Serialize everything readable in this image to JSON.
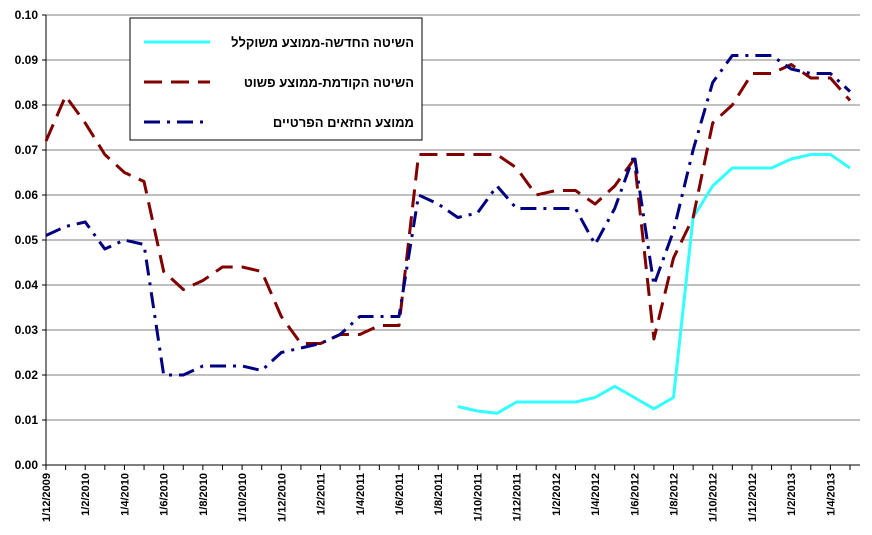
{
  "chart_data": {
    "type": "line",
    "categories": [
      "1/12/2009",
      null,
      "1/2/2010",
      null,
      "1/4/2010",
      null,
      "1/6/2010",
      null,
      "1/8/2010",
      null,
      "1/10/2010",
      null,
      "1/12/2010",
      null,
      "1/2/2011",
      null,
      "1/4/2011",
      null,
      "1/6/2011",
      null,
      "1/8/2011",
      null,
      "1/10/2011",
      null,
      "1/12/2011",
      null,
      "1/2/2012",
      null,
      "1/4/2012",
      null,
      "1/6/2012",
      null,
      "1/8/2012",
      null,
      "1/10/2012",
      null,
      "1/12/2012",
      null,
      "1/2/2013",
      null,
      "1/4/2013",
      null
    ],
    "series": [
      {
        "name": "השיטה החדשה-ממוצע משוקלל",
        "color": "#33ffff",
        "dash": "solid",
        "values": [
          null,
          null,
          null,
          null,
          null,
          null,
          null,
          null,
          null,
          null,
          null,
          null,
          null,
          null,
          null,
          null,
          null,
          null,
          null,
          null,
          null,
          0.013,
          0.012,
          0.0115,
          0.014,
          0.014,
          0.014,
          0.014,
          0.015,
          0.0175,
          0.015,
          0.0125,
          0.015,
          0.055,
          0.062,
          0.066,
          0.066,
          0.066,
          0.068,
          0.069,
          0.069,
          0.066
        ]
      },
      {
        "name": "השיטה הקודמת-ממוצע פשוט",
        "color": "#800000",
        "dash": "dashed",
        "values": [
          0.072,
          0.082,
          0.076,
          0.069,
          0.065,
          0.063,
          0.043,
          0.039,
          0.041,
          0.044,
          0.044,
          0.043,
          0.033,
          0.027,
          0.027,
          0.029,
          0.029,
          0.031,
          0.031,
          0.069,
          0.069,
          0.069,
          0.069,
          0.069,
          0.066,
          0.06,
          0.061,
          0.061,
          0.058,
          0.062,
          0.068,
          0.028,
          0.046,
          0.055,
          0.076,
          0.08,
          0.087,
          0.087,
          0.089,
          0.086,
          0.086,
          0.081
        ]
      },
      {
        "name": "ממוצע החזאים הפרטיים",
        "color": "#000080",
        "dash": "dashdot",
        "values": [
          0.051,
          0.053,
          0.054,
          0.048,
          0.05,
          0.049,
          0.02,
          0.02,
          0.022,
          0.022,
          0.022,
          0.021,
          0.025,
          0.026,
          0.027,
          0.029,
          0.033,
          0.033,
          0.033,
          0.06,
          0.058,
          0.055,
          0.056,
          0.062,
          0.057,
          0.057,
          0.057,
          0.057,
          0.049,
          0.057,
          0.069,
          0.04,
          0.052,
          0.07,
          0.085,
          0.091,
          0.091,
          0.091,
          0.088,
          0.087,
          0.087,
          0.083
        ]
      }
    ],
    "ylim": [
      0,
      0.1
    ],
    "yticks": [
      {
        "value": 0,
        "label": "0.00"
      },
      {
        "value": 0.01,
        "label": "0.01"
      },
      {
        "value": 0.02,
        "label": "0.02"
      },
      {
        "value": 0.03,
        "label": "0.03"
      },
      {
        "value": 0.04,
        "label": "0.04"
      },
      {
        "value": 0.05,
        "label": "0.05"
      },
      {
        "value": 0.06,
        "label": "0.06"
      },
      {
        "value": 0.07,
        "label": "0.07"
      },
      {
        "value": 0.08,
        "label": "0.08"
      },
      {
        "value": 0.09,
        "label": "0.09"
      },
      {
        "value": 0.1,
        "label": "0.10"
      }
    ],
    "grid": true,
    "legend": "top-left"
  }
}
